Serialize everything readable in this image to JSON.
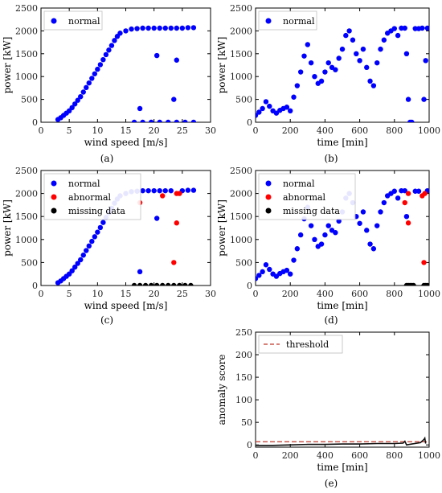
{
  "colors": {
    "normal": "#0000ff",
    "abnormal": "#ff0000",
    "missing": "#000000",
    "threshold": "#c0392b",
    "score": "#111111"
  },
  "chart_data": [
    {
      "panel": "(a)",
      "type": "scatter",
      "xlabel": "wind speed [m/s]",
      "ylabel": "power [kW]",
      "xlim": [
        0,
        30
      ],
      "ylim": [
        0,
        2500
      ],
      "xticks": [
        0,
        5,
        10,
        15,
        20,
        25,
        30
      ],
      "yticks": [
        0,
        500,
        1000,
        1500,
        2000,
        2500
      ],
      "legend_position": "top-left",
      "series": [
        {
          "name": "normal",
          "points": [
            [
              3.0,
              60
            ],
            [
              3.5,
              100
            ],
            [
              4.0,
              150
            ],
            [
              4.5,
              200
            ],
            [
              5.0,
              250
            ],
            [
              5.5,
              320
            ],
            [
              6.0,
              400
            ],
            [
              6.5,
              480
            ],
            [
              7.0,
              560
            ],
            [
              7.5,
              660
            ],
            [
              8.0,
              760
            ],
            [
              8.5,
              860
            ],
            [
              9.0,
              960
            ],
            [
              9.5,
              1060
            ],
            [
              10.0,
              1160
            ],
            [
              10.5,
              1260
            ],
            [
              11.0,
              1370
            ],
            [
              11.5,
              1480
            ],
            [
              12.0,
              1580
            ],
            [
              12.5,
              1680
            ],
            [
              13.0,
              1790
            ],
            [
              13.5,
              1880
            ],
            [
              14.0,
              1950
            ],
            [
              15.0,
              2000
            ],
            [
              16.0,
              2040
            ],
            [
              17.0,
              2050
            ],
            [
              18.0,
              2060
            ],
            [
              19.0,
              2060
            ],
            [
              20.0,
              2060
            ],
            [
              21.0,
              2060
            ],
            [
              22.0,
              2060
            ],
            [
              23.0,
              2060
            ],
            [
              24.0,
              2060
            ],
            [
              25.0,
              2060
            ],
            [
              26.0,
              2070
            ],
            [
              27.0,
              2070
            ],
            [
              20.5,
              1460
            ],
            [
              24.0,
              1360
            ],
            [
              23.5,
              500
            ],
            [
              17.5,
              300
            ],
            [
              16.5,
              0
            ],
            [
              18.0,
              0
            ],
            [
              19.5,
              0
            ],
            [
              21.0,
              0
            ],
            [
              22.5,
              0
            ],
            [
              24.0,
              0
            ],
            [
              25.5,
              0
            ],
            [
              27.0,
              0
            ]
          ]
        }
      ]
    },
    {
      "panel": "(b)",
      "type": "scatter",
      "xlabel": "time [min]",
      "ylabel": "power [kW]",
      "xlim": [
        0,
        1000
      ],
      "ylim": [
        0,
        2500
      ],
      "xticks": [
        0,
        200,
        400,
        600,
        800,
        1000
      ],
      "yticks": [
        0,
        500,
        1000,
        1500,
        2000,
        2500
      ],
      "legend_position": "top-left",
      "series": [
        {
          "name": "normal",
          "points": [
            [
              0,
              150
            ],
            [
              20,
              220
            ],
            [
              40,
              300
            ],
            [
              60,
              450
            ],
            [
              80,
              350
            ],
            [
              100,
              250
            ],
            [
              120,
              200
            ],
            [
              140,
              260
            ],
            [
              160,
              300
            ],
            [
              180,
              330
            ],
            [
              200,
              250
            ],
            [
              220,
              550
            ],
            [
              240,
              800
            ],
            [
              260,
              1100
            ],
            [
              280,
              1450
            ],
            [
              300,
              1700
            ],
            [
              320,
              1300
            ],
            [
              340,
              1000
            ],
            [
              360,
              850
            ],
            [
              380,
              900
            ],
            [
              400,
              1100
            ],
            [
              420,
              1300
            ],
            [
              440,
              1200
            ],
            [
              460,
              1150
            ],
            [
              480,
              1400
            ],
            [
              500,
              1600
            ],
            [
              520,
              1900
            ],
            [
              540,
              2000
            ],
            [
              560,
              1800
            ],
            [
              580,
              1500
            ],
            [
              600,
              1350
            ],
            [
              620,
              1600
            ],
            [
              640,
              1200
            ],
            [
              660,
              900
            ],
            [
              680,
              800
            ],
            [
              700,
              1300
            ],
            [
              720,
              1600
            ],
            [
              740,
              1800
            ],
            [
              760,
              1950
            ],
            [
              780,
              2000
            ],
            [
              800,
              2050
            ],
            [
              820,
              1900
            ],
            [
              840,
              2060
            ],
            [
              860,
              2060
            ],
            [
              870,
              1500
            ],
            [
              880,
              500
            ],
            [
              890,
              0
            ],
            [
              900,
              0
            ],
            [
              920,
              2050
            ],
            [
              940,
              2050
            ],
            [
              960,
              2060
            ],
            [
              970,
              500
            ],
            [
              980,
              1350
            ],
            [
              990,
              2060
            ]
          ]
        }
      ]
    },
    {
      "panel": "(c)",
      "type": "scatter",
      "xlabel": "wind speed [m/s]",
      "ylabel": "power [kW]",
      "xlim": [
        0,
        30
      ],
      "ylim": [
        0,
        2500
      ],
      "xticks": [
        0,
        5,
        10,
        15,
        20,
        25,
        30
      ],
      "yticks": [
        0,
        500,
        1000,
        1500,
        2000,
        2500
      ],
      "legend_position": "top-left",
      "series": [
        {
          "name": "normal",
          "points": [
            [
              3.0,
              60
            ],
            [
              3.5,
              100
            ],
            [
              4.0,
              150
            ],
            [
              4.5,
              200
            ],
            [
              5.0,
              250
            ],
            [
              5.5,
              320
            ],
            [
              6.0,
              400
            ],
            [
              6.5,
              480
            ],
            [
              7.0,
              560
            ],
            [
              7.5,
              660
            ],
            [
              8.0,
              760
            ],
            [
              8.5,
              860
            ],
            [
              9.0,
              960
            ],
            [
              9.5,
              1060
            ],
            [
              10.0,
              1160
            ],
            [
              10.5,
              1260
            ],
            [
              11.0,
              1370
            ],
            [
              11.5,
              1480
            ],
            [
              12.0,
              1580
            ],
            [
              12.5,
              1680
            ],
            [
              13.0,
              1790
            ],
            [
              13.5,
              1880
            ],
            [
              14.0,
              1950
            ],
            [
              15.0,
              2000
            ],
            [
              16.0,
              2040
            ],
            [
              17.0,
              2050
            ],
            [
              18.0,
              2060
            ],
            [
              19.0,
              2060
            ],
            [
              20.0,
              2060
            ],
            [
              21.0,
              2060
            ],
            [
              22.0,
              2060
            ],
            [
              23.0,
              2060
            ],
            [
              25.0,
              2060
            ],
            [
              26.0,
              2070
            ],
            [
              27.0,
              2070
            ],
            [
              20.5,
              1460
            ],
            [
              17.5,
              300
            ]
          ]
        },
        {
          "name": "abnormal",
          "points": [
            [
              17.5,
              1800
            ],
            [
              21.5,
              1950
            ],
            [
              24.0,
              2000
            ],
            [
              24.5,
              2000
            ],
            [
              24.0,
              1360
            ],
            [
              23.5,
              500
            ]
          ]
        },
        {
          "name": "missing data",
          "points": [
            [
              16.5,
              0
            ],
            [
              17.5,
              0
            ],
            [
              18.5,
              0
            ],
            [
              19.5,
              0
            ],
            [
              20.5,
              0
            ],
            [
              21.5,
              0
            ],
            [
              22.5,
              0
            ],
            [
              23.5,
              0
            ],
            [
              24.5,
              0
            ],
            [
              25.5,
              0
            ],
            [
              26.5,
              0
            ]
          ]
        }
      ]
    },
    {
      "panel": "(d)",
      "type": "scatter",
      "xlabel": "time [min]",
      "ylabel": "power [kW]",
      "xlim": [
        0,
        1000
      ],
      "ylim": [
        0,
        2500
      ],
      "xticks": [
        0,
        200,
        400,
        600,
        800,
        1000
      ],
      "yticks": [
        0,
        500,
        1000,
        1500,
        2000,
        2500
      ],
      "legend_position": "top-left",
      "series": [
        {
          "name": "normal",
          "points": [
            [
              0,
              150
            ],
            [
              20,
              220
            ],
            [
              40,
              300
            ],
            [
              60,
              450
            ],
            [
              80,
              350
            ],
            [
              100,
              250
            ],
            [
              120,
              200
            ],
            [
              140,
              260
            ],
            [
              160,
              300
            ],
            [
              180,
              330
            ],
            [
              200,
              250
            ],
            [
              220,
              550
            ],
            [
              240,
              800
            ],
            [
              260,
              1100
            ],
            [
              280,
              1450
            ],
            [
              300,
              1700
            ],
            [
              320,
              1300
            ],
            [
              340,
              1000
            ],
            [
              360,
              850
            ],
            [
              380,
              900
            ],
            [
              400,
              1100
            ],
            [
              420,
              1300
            ],
            [
              440,
              1200
            ],
            [
              460,
              1150
            ],
            [
              480,
              1400
            ],
            [
              500,
              1600
            ],
            [
              520,
              1900
            ],
            [
              540,
              2000
            ],
            [
              560,
              1800
            ],
            [
              580,
              1500
            ],
            [
              600,
              1350
            ],
            [
              620,
              1600
            ],
            [
              640,
              1200
            ],
            [
              660,
              900
            ],
            [
              680,
              800
            ],
            [
              700,
              1300
            ],
            [
              720,
              1600
            ],
            [
              740,
              1800
            ],
            [
              760,
              1950
            ],
            [
              780,
              2000
            ],
            [
              800,
              2050
            ],
            [
              820,
              1900
            ],
            [
              840,
              2060
            ],
            [
              860,
              2060
            ],
            [
              870,
              1500
            ],
            [
              920,
              2050
            ],
            [
              940,
              2050
            ],
            [
              990,
              2060
            ]
          ]
        },
        {
          "name": "abnormal",
          "points": [
            [
              860,
              1800
            ],
            [
              880,
              1360
            ],
            [
              880,
              2000
            ],
            [
              960,
              1950
            ],
            [
              975,
              2000
            ],
            [
              970,
              500
            ]
          ]
        },
        {
          "name": "missing data",
          "points": [
            [
              870,
              0
            ],
            [
              880,
              0
            ],
            [
              890,
              0
            ],
            [
              900,
              0
            ],
            [
              910,
              0
            ],
            [
              970,
              0
            ],
            [
              980,
              0
            ],
            [
              990,
              0
            ]
          ]
        }
      ]
    },
    {
      "panel": "(e)",
      "type": "line",
      "xlabel": "time [min]",
      "ylabel": "anomaly score",
      "xlim": [
        0,
        1000
      ],
      "ylim": [
        -5,
        250
      ],
      "xticks": [
        0,
        200,
        400,
        600,
        800,
        1000
      ],
      "yticks": [
        0,
        50,
        100,
        150,
        200,
        250
      ],
      "legend_position": "top-left",
      "threshold": {
        "name": "threshold",
        "y": 7
      },
      "series": [
        {
          "name": "",
          "points": [
            [
              0,
              -1
            ],
            [
              100,
              -1
            ],
            [
              200,
              0
            ],
            [
              300,
              1
            ],
            [
              400,
              1
            ],
            [
              500,
              2
            ],
            [
              600,
              2
            ],
            [
              700,
              3
            ],
            [
              800,
              3
            ],
            [
              850,
              4
            ],
            [
              860,
              8
            ],
            [
              870,
              0
            ],
            [
              900,
              2
            ],
            [
              950,
              5
            ],
            [
              970,
              12
            ],
            [
              975,
              15
            ],
            [
              980,
              3
            ]
          ]
        }
      ]
    }
  ]
}
